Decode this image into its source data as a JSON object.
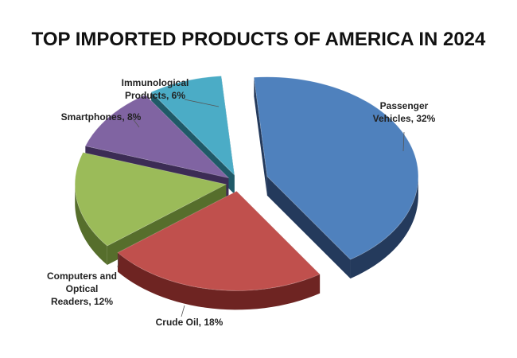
{
  "chart_data": {
    "type": "pie",
    "title": "TOP IMPORTED PRODUCTS OF AMERICA IN 2024",
    "categories": [
      "Passenger Vehicles",
      "Crude Oil",
      "Computers and Optical Readers",
      "Smartphones",
      "Immunological Products"
    ],
    "values": [
      32,
      18,
      12,
      8,
      6
    ],
    "labels": [
      [
        "Passenger",
        "Vehicles, 32%"
      ],
      [
        "Crude Oil, 18%"
      ],
      [
        "Computers and",
        "Optical",
        "Readers, 12%"
      ],
      [
        "Smartphones, 8%"
      ],
      [
        "Immunological",
        "Products, 6%"
      ]
    ],
    "colors": [
      "#4F81BD",
      "#C0504D",
      "#9BBB59",
      "#8064A2",
      "#4BACC6"
    ],
    "side_colors": [
      "#243A5C",
      "#6E2422",
      "#566E2C",
      "#3C2C55",
      "#1F5A68"
    ],
    "exploded": true,
    "three_d": true,
    "legend": "none"
  }
}
